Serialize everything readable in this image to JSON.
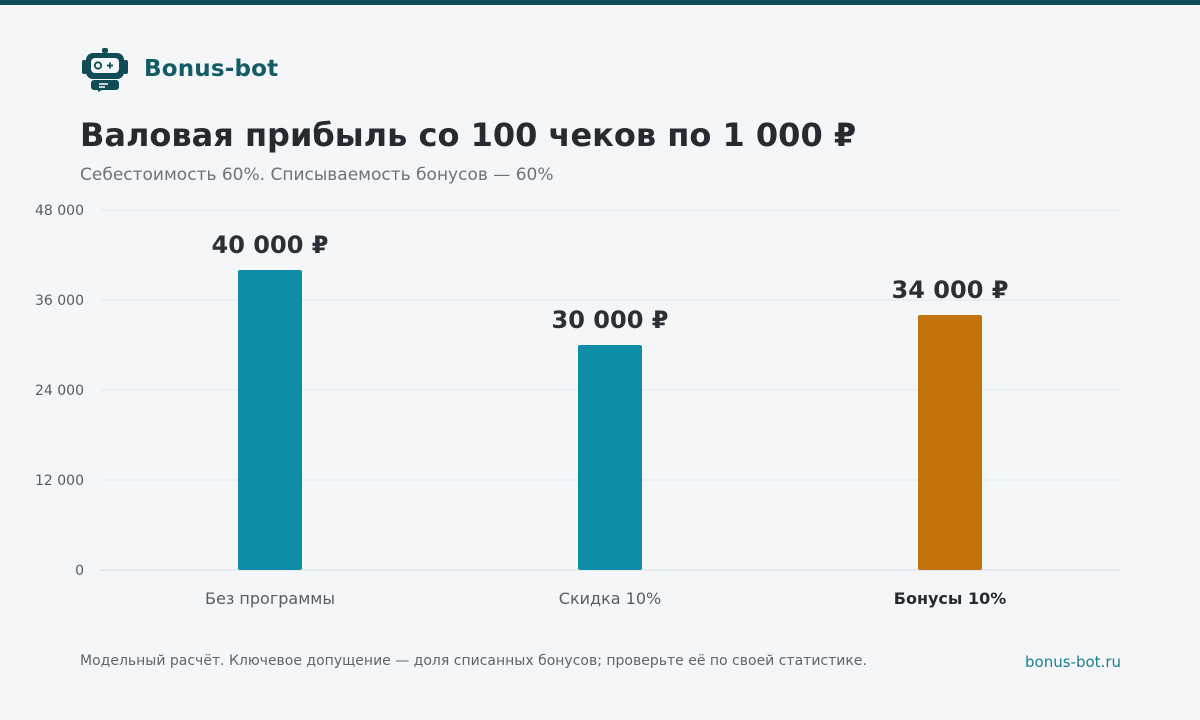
{
  "brand": {
    "name": "Bonus-bot",
    "logo_icon": "robot-icon",
    "accent_color": "#0f4c55"
  },
  "header": {
    "title": "Валовая прибыль со 100 чеков по 1 000 ₽",
    "subtitle": "Себестоимость 60%. Списываемость бонусов — 60%"
  },
  "chart_data": {
    "type": "bar",
    "categories": [
      "Без программы",
      "Скидка 10%",
      "Бонусы 10%"
    ],
    "values": [
      40000,
      30000,
      34000
    ],
    "value_labels": [
      "40 000 ₽",
      "30 000 ₽",
      "34 000 ₽"
    ],
    "colors": [
      "#0f8ca8",
      "#0f8ca8",
      "#c4720c"
    ],
    "highlighted_category": "Бонусы 10%",
    "yticks": [
      0,
      12000,
      24000,
      36000,
      48000
    ],
    "ytick_labels": [
      "0",
      "12 000",
      "24 000",
      "36 000",
      "48 000"
    ],
    "ylim": [
      0,
      48000
    ],
    "grid": true,
    "title": "Валовая прибыль со 100 чеков по 1 000 ₽",
    "subtitle": "Себестоимость 60%. Списываемость бонусов — 60%",
    "xlabel": "",
    "ylabel": ""
  },
  "footer": {
    "note": "Модельный расчёт. Ключевое допущение — доля списанных бонусов; проверьте её по своей статистике.",
    "link": "bonus-bot.ru"
  }
}
